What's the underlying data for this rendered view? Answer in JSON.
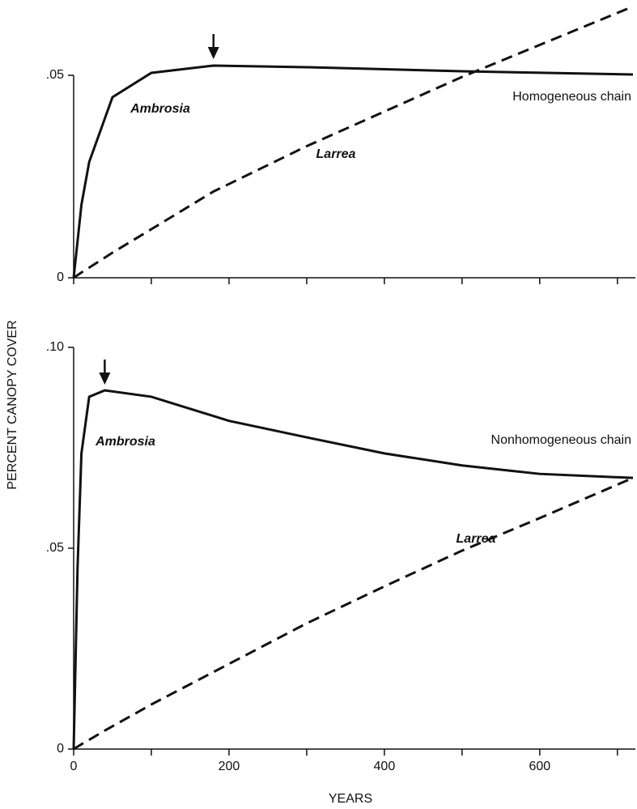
{
  "chart_data": [
    {
      "type": "line",
      "subtitle": "Homogeneous chain",
      "ylabel": "PERCENT CANOPY COVER",
      "x": [
        0,
        10,
        20,
        50,
        100,
        180,
        300,
        500,
        720
      ],
      "series": [
        {
          "name": "Ambrosia",
          "color": "#111111",
          "style": "solid",
          "values": [
            0,
            0.018,
            0.0286,
            0.0446,
            0.0506,
            0.0524,
            0.052,
            0.051,
            0.0502
          ]
        },
        {
          "name": "Larrea",
          "color": "#111111",
          "style": "dashed",
          "values": [
            0,
            0.0013,
            0.0025,
            0.0062,
            0.012,
            0.0213,
            0.0325,
            0.0496,
            0.067
          ]
        }
      ],
      "arrow_x": 180,
      "xlim": [
        0,
        720
      ],
      "xticks": [
        0,
        200,
        400,
        600
      ],
      "xminor_ticks": [
        100,
        300,
        500,
        700
      ],
      "ylim": [
        0,
        0.068
      ],
      "yticks": [
        {
          "value": 0,
          "label": "0"
        },
        {
          "value": 0.05,
          "label": ".05"
        }
      ]
    },
    {
      "type": "line",
      "subtitle": "Nonhomogeneous chain",
      "xlabel": "YEARS",
      "x": [
        0,
        5,
        10,
        20,
        40,
        100,
        200,
        300,
        400,
        500,
        600,
        720
      ],
      "series": [
        {
          "name": "Ambrosia",
          "color": "#111111",
          "style": "solid",
          "values": [
            0,
            0.045,
            0.0736,
            0.0877,
            0.0893,
            0.0877,
            0.0817,
            0.0776,
            0.0736,
            0.0706,
            0.0685,
            0.0675
          ]
        },
        {
          "name": "Larrea",
          "color": "#111111",
          "style": "dashed",
          "values": [
            0,
            0.0006,
            0.0012,
            0.0023,
            0.0046,
            0.0111,
            0.0212,
            0.0313,
            0.0405,
            0.0494,
            0.0575,
            0.0675
          ]
        }
      ],
      "arrow_x": 40,
      "xlim": [
        0,
        720
      ],
      "xticks": [
        0,
        200,
        400,
        600
      ],
      "xminor_ticks": [
        100,
        300,
        500,
        700
      ],
      "ylim": [
        0,
        0.102
      ],
      "yticks": [
        {
          "value": 0,
          "label": "0"
        },
        {
          "value": 0.05,
          "label": ".05"
        },
        {
          "value": 0.1,
          "label": ".10"
        }
      ]
    }
  ]
}
